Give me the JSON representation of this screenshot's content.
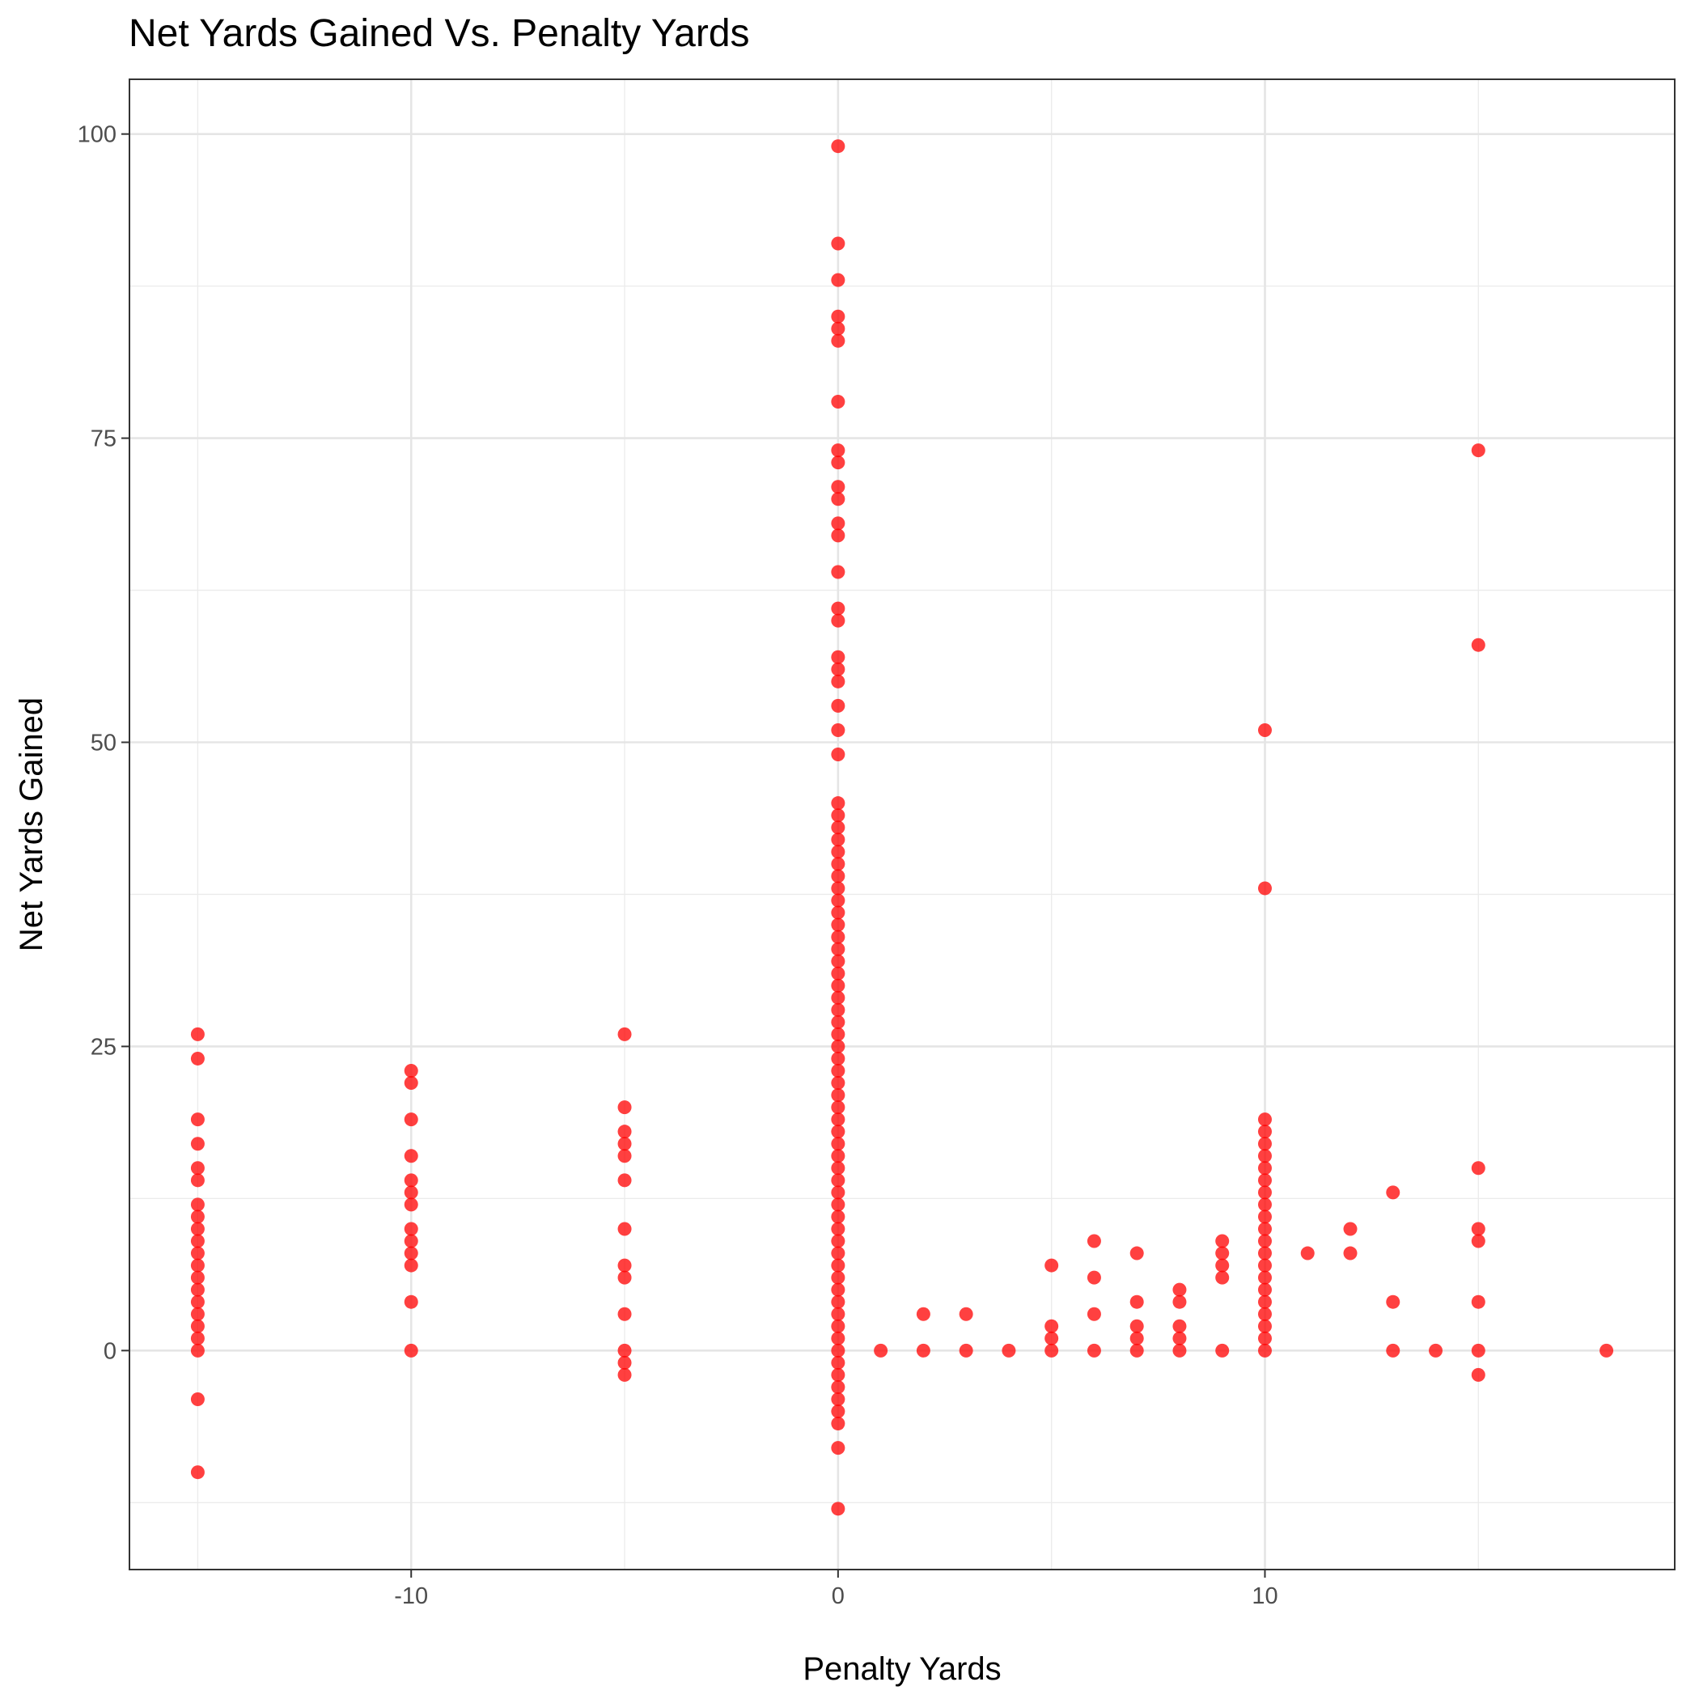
{
  "chart_data": {
    "type": "scatter",
    "title": "Net Yards Gained Vs. Penalty Yards",
    "xlabel": "Penalty Yards",
    "ylabel": "Net Yards Gained",
    "xlim": [
      -16.6,
      19.6
    ],
    "ylim": [
      -18,
      104.5
    ],
    "x_ticks": [
      -10,
      0,
      10
    ],
    "y_ticks": [
      0,
      25,
      50,
      75,
      100
    ],
    "grid": true,
    "point_color": "#ff0000",
    "point_opacity": 0.75,
    "series": [
      {
        "points": [
          [
            -15,
            26
          ],
          [
            -15,
            24
          ],
          [
            -15,
            19
          ],
          [
            -15,
            17
          ],
          [
            -15,
            15
          ],
          [
            -15,
            14
          ],
          [
            -15,
            12
          ],
          [
            -15,
            11
          ],
          [
            -15,
            10
          ],
          [
            -15,
            9
          ],
          [
            -15,
            8
          ],
          [
            -15,
            7
          ],
          [
            -15,
            6
          ],
          [
            -15,
            5
          ],
          [
            -15,
            4
          ],
          [
            -15,
            3
          ],
          [
            -15,
            2
          ],
          [
            -15,
            1
          ],
          [
            -15,
            0
          ],
          [
            -15,
            -4
          ],
          [
            -15,
            -10
          ],
          [
            -10,
            23
          ],
          [
            -10,
            22
          ],
          [
            -10,
            19
          ],
          [
            -10,
            16
          ],
          [
            -10,
            14
          ],
          [
            -10,
            13
          ],
          [
            -10,
            12
          ],
          [
            -10,
            10
          ],
          [
            -10,
            9
          ],
          [
            -10,
            8
          ],
          [
            -10,
            7
          ],
          [
            -10,
            4
          ],
          [
            -10,
            0
          ],
          [
            -5,
            26
          ],
          [
            -5,
            20
          ],
          [
            -5,
            18
          ],
          [
            -5,
            17
          ],
          [
            -5,
            16
          ],
          [
            -5,
            14
          ],
          [
            -5,
            10
          ],
          [
            -5,
            7
          ],
          [
            -5,
            6
          ],
          [
            -5,
            3
          ],
          [
            -5,
            0
          ],
          [
            -5,
            -1
          ],
          [
            -5,
            -2
          ],
          [
            0,
            99
          ],
          [
            0,
            91
          ],
          [
            0,
            88
          ],
          [
            0,
            85
          ],
          [
            0,
            84
          ],
          [
            0,
            83
          ],
          [
            0,
            78
          ],
          [
            0,
            74
          ],
          [
            0,
            73
          ],
          [
            0,
            71
          ],
          [
            0,
            70
          ],
          [
            0,
            68
          ],
          [
            0,
            67
          ],
          [
            0,
            64
          ],
          [
            0,
            61
          ],
          [
            0,
            60
          ],
          [
            0,
            57
          ],
          [
            0,
            56
          ],
          [
            0,
            55
          ],
          [
            0,
            53
          ],
          [
            0,
            51
          ],
          [
            0,
            49
          ],
          [
            0,
            45
          ],
          [
            0,
            44
          ],
          [
            0,
            43
          ],
          [
            0,
            42
          ],
          [
            0,
            41
          ],
          [
            0,
            40
          ],
          [
            0,
            39
          ],
          [
            0,
            38
          ],
          [
            0,
            37
          ],
          [
            0,
            36
          ],
          [
            0,
            35
          ],
          [
            0,
            34
          ],
          [
            0,
            33
          ],
          [
            0,
            32
          ],
          [
            0,
            31
          ],
          [
            0,
            30
          ],
          [
            0,
            29
          ],
          [
            0,
            28
          ],
          [
            0,
            27
          ],
          [
            0,
            26
          ],
          [
            0,
            25
          ],
          [
            0,
            24
          ],
          [
            0,
            23
          ],
          [
            0,
            22
          ],
          [
            0,
            21
          ],
          [
            0,
            20
          ],
          [
            0,
            19
          ],
          [
            0,
            18
          ],
          [
            0,
            17
          ],
          [
            0,
            16
          ],
          [
            0,
            15
          ],
          [
            0,
            14
          ],
          [
            0,
            13
          ],
          [
            0,
            12
          ],
          [
            0,
            11
          ],
          [
            0,
            10
          ],
          [
            0,
            9
          ],
          [
            0,
            8
          ],
          [
            0,
            7
          ],
          [
            0,
            6
          ],
          [
            0,
            5
          ],
          [
            0,
            4
          ],
          [
            0,
            3
          ],
          [
            0,
            2
          ],
          [
            0,
            1
          ],
          [
            0,
            0
          ],
          [
            0,
            -1
          ],
          [
            0,
            -2
          ],
          [
            0,
            -3
          ],
          [
            0,
            -4
          ],
          [
            0,
            -5
          ],
          [
            0,
            -6
          ],
          [
            0,
            -8
          ],
          [
            0,
            -13
          ],
          [
            1,
            0
          ],
          [
            2,
            3
          ],
          [
            2,
            0
          ],
          [
            3,
            3
          ],
          [
            3,
            0
          ],
          [
            4,
            0
          ],
          [
            5,
            7
          ],
          [
            5,
            2
          ],
          [
            5,
            1
          ],
          [
            5,
            0
          ],
          [
            6,
            9
          ],
          [
            6,
            6
          ],
          [
            6,
            3
          ],
          [
            6,
            0
          ],
          [
            7,
            8
          ],
          [
            7,
            4
          ],
          [
            7,
            2
          ],
          [
            7,
            1
          ],
          [
            7,
            0
          ],
          [
            8,
            5
          ],
          [
            8,
            4
          ],
          [
            8,
            2
          ],
          [
            8,
            1
          ],
          [
            8,
            0
          ],
          [
            9,
            9
          ],
          [
            9,
            8
          ],
          [
            9,
            7
          ],
          [
            9,
            6
          ],
          [
            9,
            0
          ],
          [
            10,
            51
          ],
          [
            10,
            38
          ],
          [
            10,
            19
          ],
          [
            10,
            18
          ],
          [
            10,
            17
          ],
          [
            10,
            16
          ],
          [
            10,
            15
          ],
          [
            10,
            14
          ],
          [
            10,
            13
          ],
          [
            10,
            12
          ],
          [
            10,
            11
          ],
          [
            10,
            10
          ],
          [
            10,
            9
          ],
          [
            10,
            8
          ],
          [
            10,
            7
          ],
          [
            10,
            6
          ],
          [
            10,
            5
          ],
          [
            10,
            4
          ],
          [
            10,
            3
          ],
          [
            10,
            2
          ],
          [
            10,
            1
          ],
          [
            10,
            0
          ],
          [
            11,
            8
          ],
          [
            12,
            10
          ],
          [
            12,
            8
          ],
          [
            13,
            13
          ],
          [
            13,
            4
          ],
          [
            13,
            0
          ],
          [
            14,
            0
          ],
          [
            15,
            74
          ],
          [
            15,
            58
          ],
          [
            15,
            15
          ],
          [
            15,
            10
          ],
          [
            15,
            9
          ],
          [
            15,
            4
          ],
          [
            15,
            0
          ],
          [
            15,
            -2
          ],
          [
            18,
            0
          ]
        ]
      }
    ]
  }
}
